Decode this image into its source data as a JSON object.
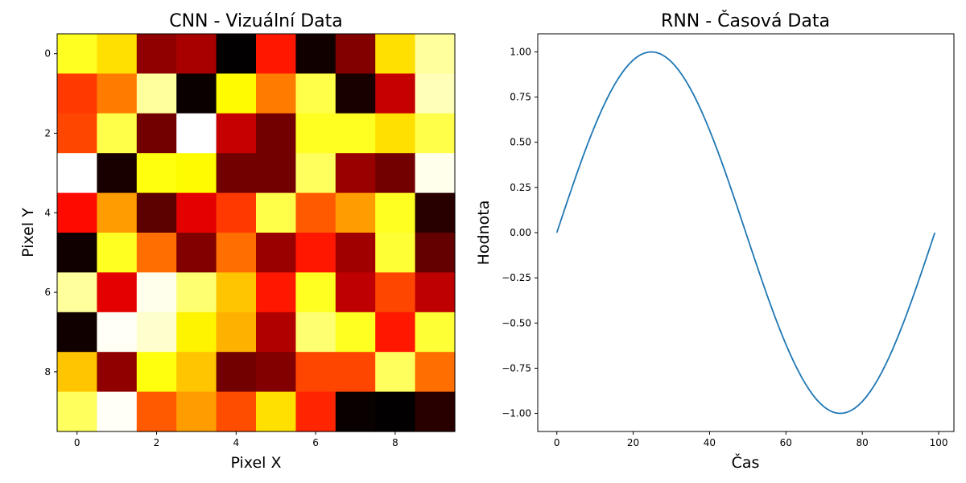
{
  "chart_data": [
    {
      "type": "heatmap",
      "title": "CNN - Vizuální Data",
      "xlabel": "Pixel X",
      "ylabel": "Pixel Y",
      "colormap": "hot",
      "x_ticks": [
        "0",
        "2",
        "4",
        "6",
        "8"
      ],
      "y_ticks": [
        "0",
        "2",
        "4",
        "6",
        "8"
      ],
      "values": [
        [
          0.78,
          0.7,
          0.22,
          0.25,
          0.03,
          0.4,
          0.05,
          0.2,
          0.7,
          0.9
        ],
        [
          0.45,
          0.55,
          0.9,
          0.0,
          0.74,
          0.55,
          0.82,
          0.06,
          0.29,
          0.93
        ],
        [
          0.47,
          0.82,
          0.18,
          1.0,
          0.29,
          0.18,
          0.78,
          0.78,
          0.7,
          0.82
        ],
        [
          1.0,
          0.06,
          0.76,
          0.74,
          0.18,
          0.18,
          0.84,
          0.23,
          0.18,
          0.98
        ],
        [
          0.38,
          0.6,
          0.15,
          0.33,
          0.45,
          0.82,
          0.5,
          0.6,
          0.78,
          0.08
        ],
        [
          0.05,
          0.78,
          0.53,
          0.2,
          0.53,
          0.23,
          0.4,
          0.24,
          0.8,
          0.16
        ],
        [
          0.9,
          0.33,
          0.98,
          0.86,
          0.66,
          0.4,
          0.78,
          0.28,
          0.47,
          0.28
        ],
        [
          0.05,
          0.99,
          0.95,
          0.73,
          0.63,
          0.26,
          0.86,
          0.78,
          0.4,
          0.8
        ],
        [
          0.66,
          0.22,
          0.76,
          0.66,
          0.18,
          0.2,
          0.47,
          0.47,
          0.84,
          0.53
        ],
        [
          0.84,
          0.99,
          0.5,
          0.6,
          0.48,
          0.7,
          0.42,
          0.04,
          0.03,
          0.08
        ]
      ]
    },
    {
      "type": "line",
      "title": "RNN - Časová Data",
      "xlabel": "Čas",
      "ylabel": "Hodnota",
      "function": "sin(2*pi*x/99)",
      "x_range": [
        0,
        99
      ],
      "n_points": 100,
      "xlim": [
        -5,
        104
      ],
      "ylim": [
        -1.1,
        1.1
      ],
      "x_ticks": [
        0,
        20,
        40,
        60,
        80,
        100
      ],
      "y_ticks": [
        1.0,
        0.75,
        0.5,
        0.25,
        0.0,
        -0.25,
        -0.5,
        -0.75,
        -1.0
      ],
      "x_tick_labels": [
        "0",
        "20",
        "40",
        "60",
        "80",
        "100"
      ],
      "y_tick_labels": [
        "1.00",
        "0.75",
        "0.50",
        "0.25",
        "0.00",
        "−0.25",
        "−0.50",
        "−0.75",
        "−1.00"
      ],
      "line_color": "#1f77b4"
    }
  ]
}
